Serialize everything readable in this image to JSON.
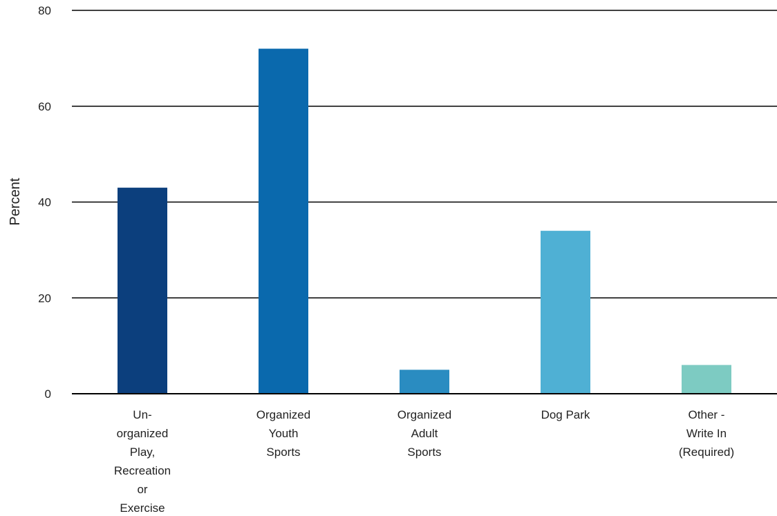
{
  "chart_data": {
    "type": "bar",
    "categories": [
      "Un-organized Play, Recreation or Exercise",
      "Organized Youth Sports",
      "Organized Adult Sports",
      "Dog Park",
      "Other - Write In (Required)"
    ],
    "category_label_lines": [
      [
        "Un-",
        "organized",
        "Play,",
        "Recreation",
        "or",
        "Exercise"
      ],
      [
        "Organized",
        "Youth",
        "Sports"
      ],
      [
        "Organized",
        "Adult",
        "Sports"
      ],
      [
        "Dog Park"
      ],
      [
        "Other -",
        "Write In",
        "(Required)"
      ]
    ],
    "values": [
      43,
      72,
      5,
      34,
      6
    ],
    "colors": [
      "#0c3f7d",
      "#0a69ad",
      "#2a8cc1",
      "#4fb0d4",
      "#7dcbc2"
    ],
    "title": "",
    "xlabel": "",
    "ylabel": "Percent",
    "ylim": [
      0,
      80
    ],
    "yticks": [
      0,
      20,
      40,
      60,
      80
    ],
    "grid": true,
    "legend": "none"
  }
}
